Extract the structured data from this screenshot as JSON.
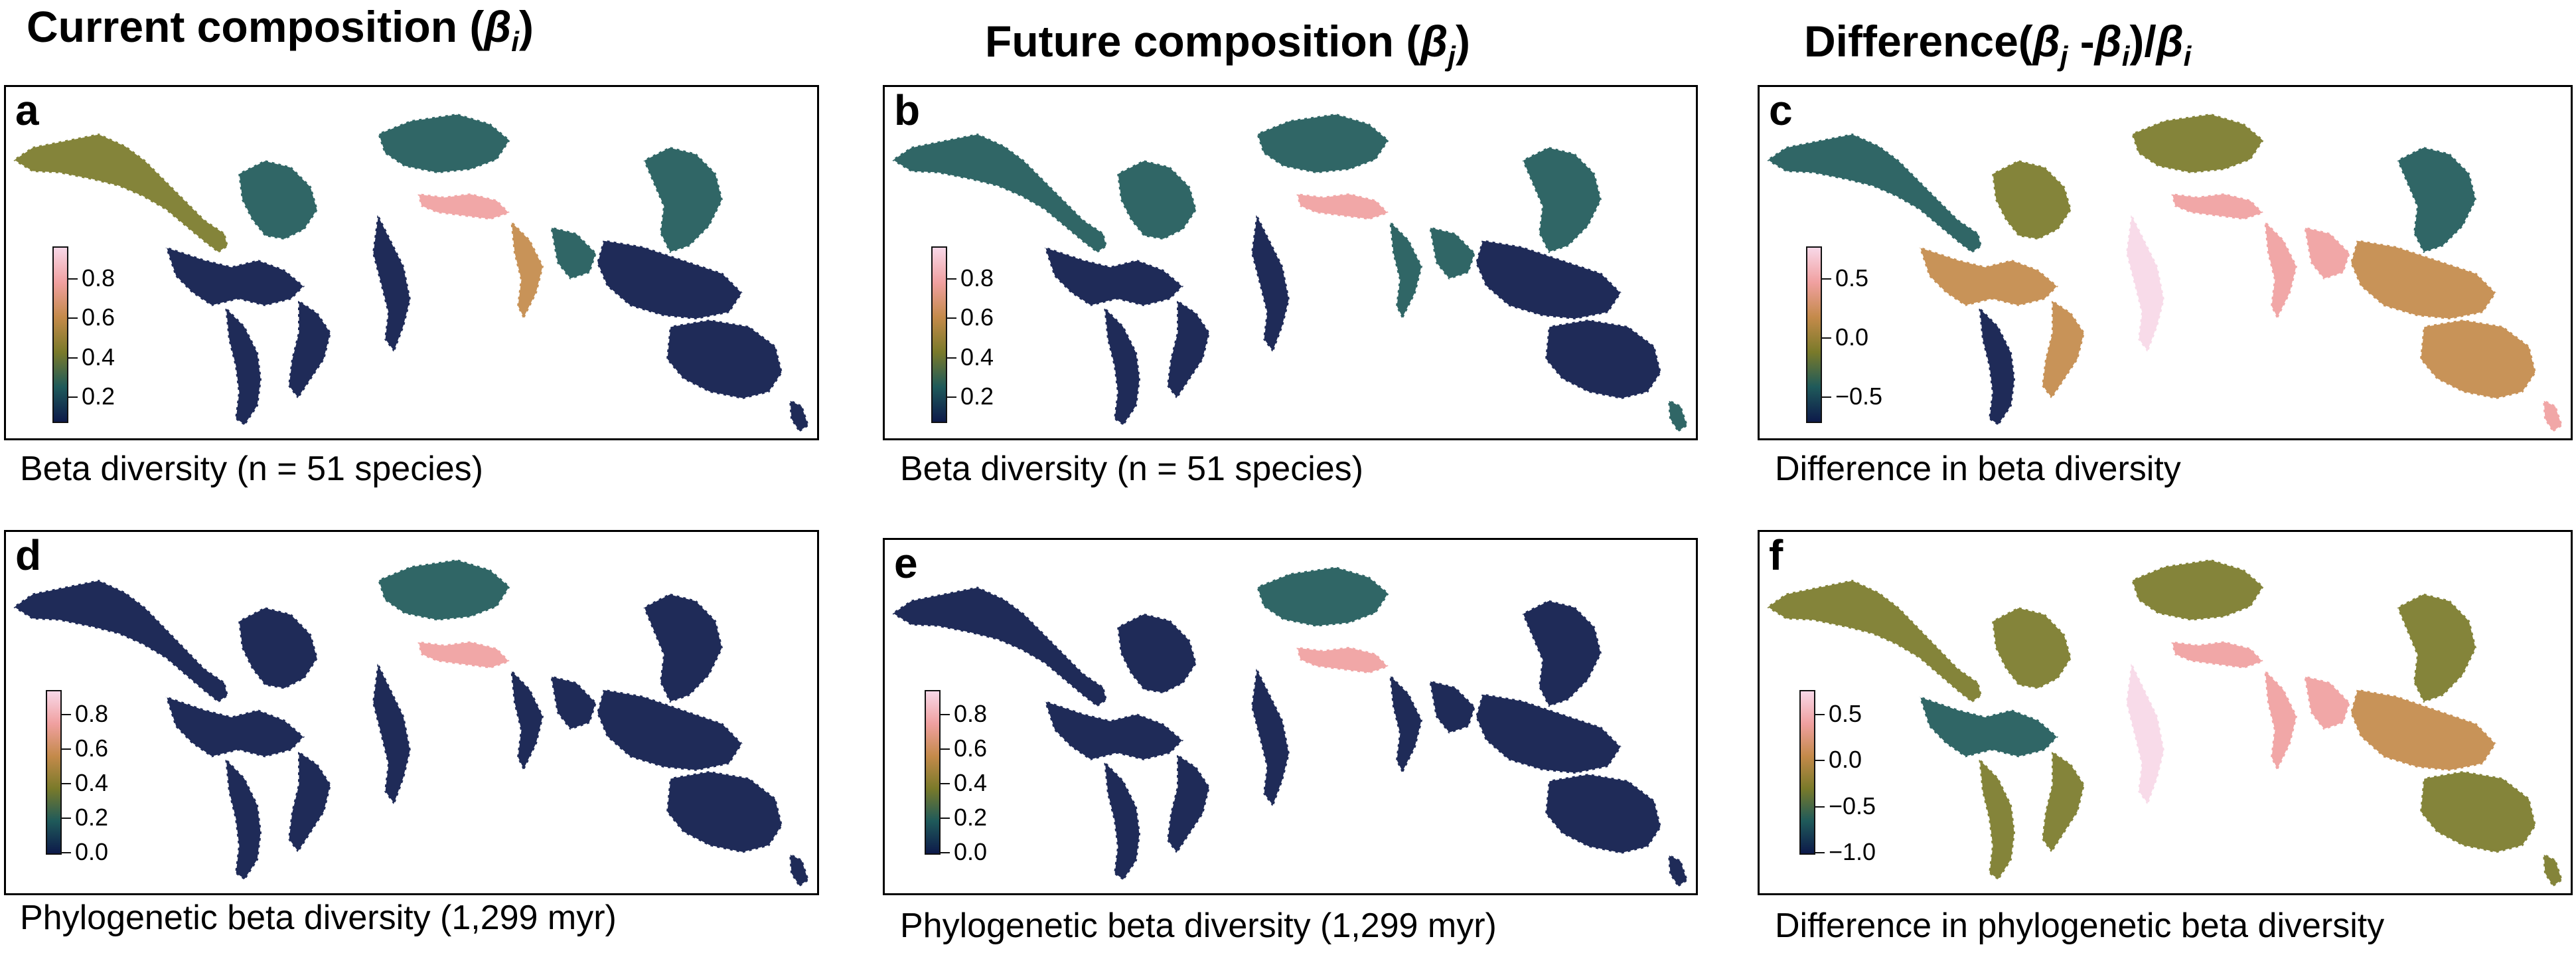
{
  "headers": {
    "current": {
      "text": "Current composition (",
      "sym": "β",
      "sub": "i",
      "tail": ")"
    },
    "future": {
      "text": "Future composition (",
      "sym": "β",
      "sub": "j",
      "tail": ")"
    },
    "difference": {
      "text": "Difference(",
      "sym": "β",
      "sub": "j",
      "mid": " -",
      "sym2": "β",
      "sub2": "i",
      "mid2": ")/",
      "sym3": "β",
      "sub3": "i"
    }
  },
  "panels": [
    {
      "letter": "a",
      "caption": "Beta diversity (n = 51 species)",
      "legend_ticks": [
        "0.8",
        "0.6",
        "0.4",
        "0.2"
      ],
      "scheme": "current_species"
    },
    {
      "letter": "b",
      "caption": "Beta diversity (n = 51 species)",
      "legend_ticks": [
        "0.8",
        "0.6",
        "0.4",
        "0.2"
      ],
      "scheme": "future_species"
    },
    {
      "letter": "c",
      "caption": "Difference in beta diversity",
      "legend_ticks": [
        "0.5",
        "0.0",
        "−0.5"
      ],
      "scheme": "difference_species"
    },
    {
      "letter": "d",
      "caption": "Phylogenetic beta diversity (1,299 myr)",
      "legend_ticks": [
        "0.8",
        "0.6",
        "0.4",
        "0.2",
        "0.0"
      ],
      "scheme": "current_phylo"
    },
    {
      "letter": "e",
      "caption": "Phylogenetic beta diversity (1,299 myr)",
      "legend_ticks": [
        "0.8",
        "0.6",
        "0.4",
        "0.2",
        "0.0"
      ],
      "scheme": "future_phylo"
    },
    {
      "letter": "f",
      "caption": "Difference in phylogenetic beta diversity",
      "legend_ticks": [
        "0.5",
        "0.0",
        "−0.5",
        "−1.0"
      ],
      "scheme": "difference_phylo"
    }
  ],
  "colors": {
    "low": "#0d1a4a",
    "mid_low": "#1f5a5a",
    "mid": "#7a7a2a",
    "mid_high": "#c48a4a",
    "high": "#f0a0a0",
    "top": "#f8d8e8",
    "border": "#000000"
  }
}
